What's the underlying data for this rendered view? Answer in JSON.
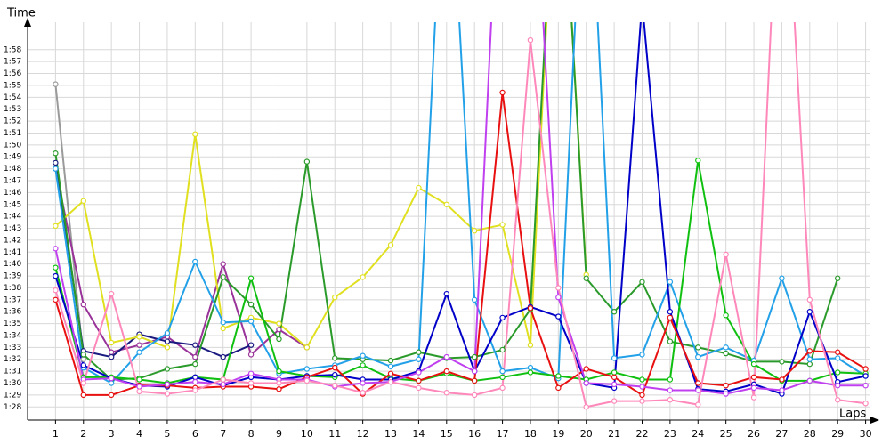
{
  "chart_data": {
    "type": "line",
    "y_label": "Time",
    "x_label": "Laps",
    "x": [
      1,
      2,
      3,
      4,
      5,
      6,
      7,
      8,
      9,
      10,
      11,
      12,
      13,
      14,
      15,
      16,
      17,
      18,
      19,
      20,
      21,
      22,
      23,
      24,
      25,
      26,
      27,
      28,
      29,
      30
    ],
    "xlim": [
      0,
      30.3
    ],
    "xticks": [
      1,
      2,
      3,
      4,
      5,
      6,
      7,
      8,
      9,
      10,
      11,
      12,
      13,
      14,
      15,
      16,
      17,
      18,
      19,
      20,
      21,
      22,
      23,
      24,
      25,
      26,
      27,
      28,
      29,
      30
    ],
    "ylim": [
      86.9,
      120.3
    ],
    "yticks": [
      {
        "value": 88,
        "label": "1:28"
      },
      {
        "value": 89,
        "label": "1:29"
      },
      {
        "value": 90,
        "label": "1:30"
      },
      {
        "value": 91,
        "label": "1:31"
      },
      {
        "value": 92,
        "label": "1:32"
      },
      {
        "value": 93,
        "label": "1:33"
      },
      {
        "value": 94,
        "label": "1:34"
      },
      {
        "value": 95,
        "label": "1:35"
      },
      {
        "value": 96,
        "label": "1:36"
      },
      {
        "value": 97,
        "label": "1:37"
      },
      {
        "value": 98,
        "label": "1:38"
      },
      {
        "value": 99,
        "label": "1:39"
      },
      {
        "value": 100,
        "label": "1:40"
      },
      {
        "value": 101,
        "label": "1:41"
      },
      {
        "value": 102,
        "label": "1:42"
      },
      {
        "value": 103,
        "label": "1:43"
      },
      {
        "value": 104,
        "label": "1:44"
      },
      {
        "value": 105,
        "label": "1:45"
      },
      {
        "value": 106,
        "label": "1:46"
      },
      {
        "value": 107,
        "label": "1:47"
      },
      {
        "value": 108,
        "label": "1:48"
      },
      {
        "value": 109,
        "label": "1:49"
      },
      {
        "value": 110,
        "label": "1:50"
      },
      {
        "value": 111,
        "label": "1:51"
      },
      {
        "value": 112,
        "label": "1:52"
      },
      {
        "value": 113,
        "label": "1:53"
      },
      {
        "value": 114,
        "label": "1:54"
      },
      {
        "value": 115,
        "label": "1:55"
      },
      {
        "value": 116,
        "label": "1:56"
      },
      {
        "value": 117,
        "label": "1:57"
      },
      {
        "value": 118,
        "label": "1:58"
      }
    ],
    "grid": true,
    "series": [
      {
        "color": "#9a9a9a",
        "values": [
          115.1,
          92.0,
          null,
          null,
          null,
          null,
          null,
          null,
          null,
          null,
          null,
          null,
          null,
          null,
          null,
          null,
          null,
          null,
          null,
          null,
          null,
          null,
          null,
          null,
          null,
          null,
          null,
          null,
          null,
          null
        ]
      },
      {
        "color": "#993399",
        "values": [
          108.0,
          96.6,
          92.6,
          93.2,
          93.9,
          92.2,
          100.0,
          92.4,
          94.5,
          93.0,
          null,
          null,
          null,
          null,
          null,
          null,
          null,
          null,
          null,
          null,
          null,
          null,
          null,
          null,
          null,
          null,
          null,
          null,
          null,
          null
        ]
      },
      {
        "color": "#1a1a80",
        "values": [
          108.5,
          92.7,
          92.2,
          94.1,
          93.5,
          93.2,
          92.2,
          93.2,
          null,
          null,
          null,
          null,
          null,
          null,
          null,
          null,
          null,
          null,
          null,
          null,
          null,
          null,
          null,
          null,
          null,
          null,
          null,
          null,
          null,
          null
        ]
      },
      {
        "color": "#e0e020",
        "values": [
          103.2,
          105.3,
          93.4,
          93.9,
          93.0,
          110.9,
          94.6,
          95.5,
          95.0,
          93.0,
          97.2,
          98.9,
          101.6,
          106.4,
          105.0,
          102.8,
          103.3,
          93.2,
          140,
          99.1,
          null,
          null,
          null,
          null,
          null,
          null,
          null,
          null,
          null,
          null
        ]
      },
      {
        "color": "#2a9a2a",
        "values": [
          109.3,
          92.4,
          90.3,
          90.4,
          91.2,
          91.6,
          98.9,
          96.6,
          93.7,
          108.6,
          92.1,
          92.0,
          91.9,
          92.6,
          92.1,
          92.2,
          92.8,
          96.2,
          140,
          98.8,
          96.0,
          98.5,
          93.5,
          93.0,
          92.5,
          91.8,
          91.8,
          91.6,
          98.8,
          null
        ]
      },
      {
        "color": "#22a0e8",
        "values": [
          108.0,
          91.3,
          90.0,
          92.6,
          94.2,
          100.2,
          95.1,
          95.2,
          90.8,
          91.2,
          91.5,
          92.3,
          91.4,
          92.0,
          140,
          97.0,
          91.0,
          91.3,
          90.4,
          140,
          92.1,
          92.4,
          98.5,
          92.2,
          93.0,
          91.9,
          98.8,
          92.0,
          92.1,
          90.6
        ]
      },
      {
        "color": "#10c010",
        "values": [
          99.7,
          90.5,
          90.5,
          90.3,
          90.0,
          90.5,
          90.3,
          98.8,
          91.0,
          90.6,
          90.5,
          91.5,
          90.4,
          90.2,
          90.8,
          90.2,
          90.5,
          90.9,
          90.6,
          90.3,
          90.9,
          90.3,
          90.3,
          108.7,
          95.7,
          91.6,
          90.2,
          90.2,
          90.9,
          90.8
        ]
      },
      {
        "color": "#0000c8",
        "values": [
          99.0,
          91.5,
          90.4,
          89.8,
          89.7,
          90.5,
          89.8,
          90.5,
          90.3,
          90.6,
          90.7,
          90.3,
          90.3,
          91.0,
          97.5,
          91.0,
          95.5,
          96.4,
          95.6,
          90.0,
          89.6,
          122,
          96.0,
          89.5,
          89.3,
          89.9,
          89.1,
          96.0,
          90.1,
          90.6
        ]
      },
      {
        "color": "#e81010",
        "values": [
          97.0,
          89.0,
          89.0,
          89.8,
          89.8,
          89.6,
          89.7,
          89.7,
          89.5,
          90.5,
          91.3,
          89.1,
          90.8,
          90.2,
          91.0,
          90.2,
          114.4,
          96.3,
          89.6,
          91.2,
          90.5,
          89.0,
          95.5,
          90.0,
          89.8,
          90.5,
          90.3,
          92.7,
          92.6,
          91.2
        ]
      },
      {
        "color": "#c040f0",
        "values": [
          101.3,
          90.3,
          90.4,
          89.7,
          89.9,
          90.1,
          89.9,
          90.8,
          90.3,
          90.3,
          89.7,
          90.0,
          90.1,
          90.9,
          92.2,
          91.0,
          140,
          140,
          97.2,
          90.0,
          89.9,
          89.7,
          89.4,
          89.4,
          89.1,
          89.6,
          89.4,
          90.2,
          89.8,
          89.8
        ]
      },
      {
        "color": "#ff88bb",
        "values": [
          97.8,
          90.0,
          97.5,
          89.3,
          89.1,
          89.4,
          90.3,
          90.0,
          90.0,
          90.2,
          89.8,
          89.2,
          90.1,
          89.6,
          89.2,
          89.0,
          89.6,
          118.8,
          98.0,
          88.0,
          88.5,
          88.5,
          88.6,
          88.2,
          100.8,
          88.8,
          140,
          97.0,
          88.6,
          88.3
        ]
      }
    ]
  }
}
